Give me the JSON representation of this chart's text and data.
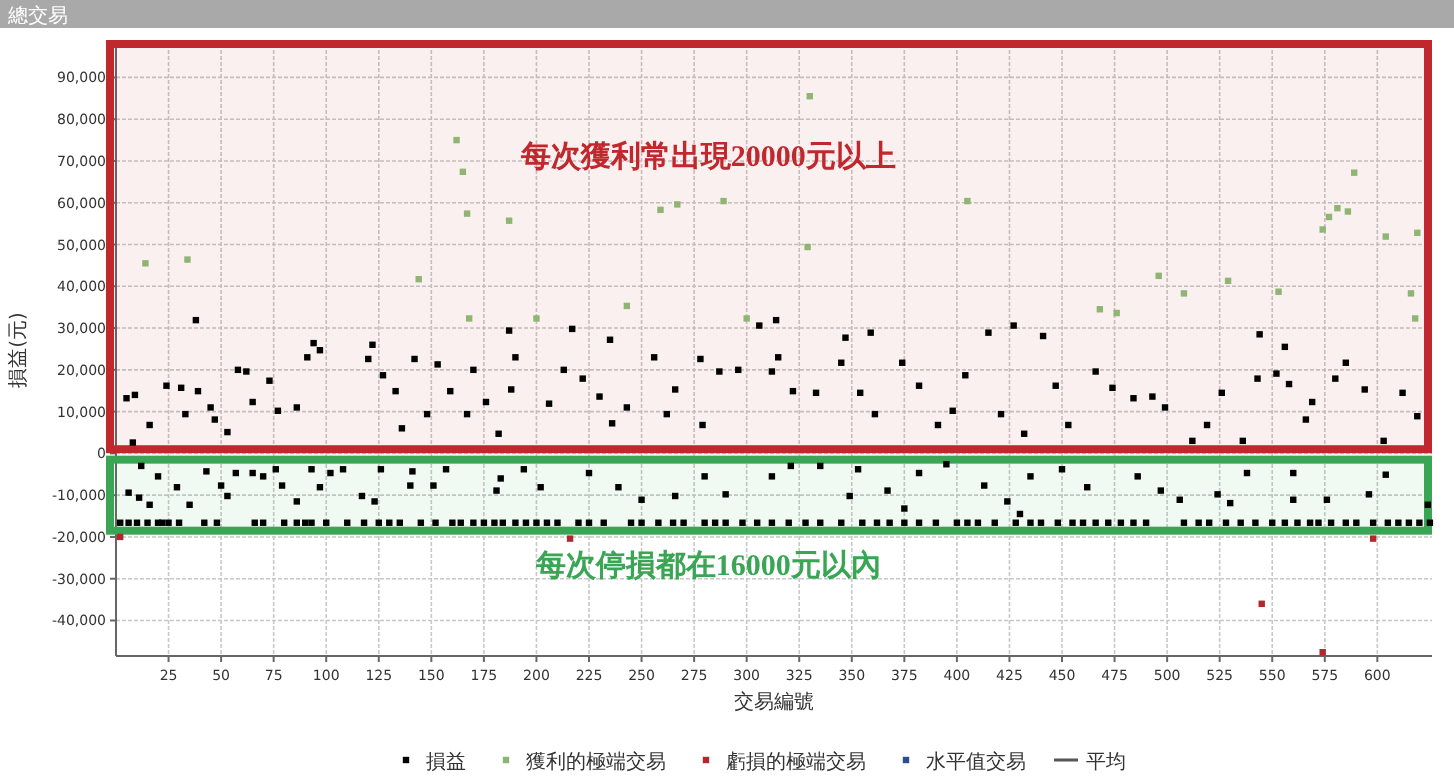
{
  "chart_data": {
    "type": "scatter",
    "title": "總交易",
    "xlabel": "交易編號",
    "ylabel": "損益(元)",
    "xlim": [
      0,
      626
    ],
    "ylim": [
      -48500,
      98000
    ],
    "xticks": [
      25,
      50,
      75,
      100,
      125,
      150,
      175,
      200,
      225,
      250,
      275,
      300,
      325,
      350,
      375,
      400,
      425,
      450,
      475,
      500,
      525,
      550,
      575,
      600
    ],
    "yticks": [
      {
        "value": -40000,
        "label": "-40,000"
      },
      {
        "value": -30000,
        "label": "-30,000"
      },
      {
        "value": -20000,
        "label": "-20,000"
      },
      {
        "value": -10000,
        "label": "-10,000"
      },
      0,
      {
        "value": 10000,
        "label": "10,000"
      },
      {
        "value": 20000,
        "label": "20,000"
      },
      {
        "value": 30000,
        "label": "30,000"
      },
      {
        "value": 40000,
        "label": "40,000"
      },
      {
        "value": 50000,
        "label": "50,000"
      },
      {
        "value": 60000,
        "label": "60,000"
      },
      {
        "value": 70000,
        "label": "70,000"
      },
      {
        "value": 80000,
        "label": "80,000"
      },
      {
        "value": 90000,
        "label": "90,000"
      }
    ],
    "grid": true,
    "legend": "bottom",
    "marker": "square",
    "bands": [
      {
        "axis": "y",
        "from": 1000,
        "to": 98000,
        "label": "每次獲利常出現20000元以上",
        "color": "#c0282d"
      },
      {
        "axis": "y",
        "from": -18500,
        "to": -1500,
        "label": "每次停損都在16000元以內",
        "color": "#3aa655"
      }
    ],
    "series": [
      {
        "name": "損益",
        "color": "#000000",
        "x": [
          5,
          9,
          8,
          16,
          24,
          31,
          33,
          39,
          45,
          47,
          53,
          58,
          62,
          65,
          73,
          77,
          86,
          91,
          97,
          120,
          127,
          133,
          136,
          142,
          148,
          153,
          159,
          167,
          170,
          176,
          182,
          190,
          38,
          94,
          122,
          187,
          12,
          6,
          11,
          16,
          20,
          29,
          35,
          43,
          50,
          53,
          57,
          65,
          70,
          76,
          79,
          86,
          93,
          97,
          102,
          108,
          117,
          123,
          126,
          141,
          140,
          151,
          157,
          181,
          183,
          2,
          6,
          10,
          15,
          20,
          22,
          25,
          30,
          42,
          48,
          66,
          70,
          80,
          86,
          90,
          93,
          100,
          110,
          118,
          125,
          130,
          135,
          145,
          152,
          160,
          164,
          170,
          175,
          180,
          184,
          190,
          188,
          206,
          213,
          222,
          230,
          236,
          243,
          256,
          262,
          266,
          278,
          279,
          287,
          296,
          312,
          315,
          322,
          333,
          345,
          354,
          361,
          374,
          382,
          391,
          398,
          404,
          421,
          432,
          447,
          453,
          466,
          474,
          484,
          493,
          499,
          512,
          519,
          526,
          536,
          543,
          552,
          558,
          566,
          569,
          580,
          585,
          594,
          603,
          612,
          619,
          217,
          235,
          306,
          314,
          347,
          359,
          415,
          427,
          441,
          544,
          556,
          194,
          202,
          225,
          239,
          250,
          266,
          280,
          290,
          312,
          321,
          335,
          349,
          353,
          367,
          375,
          382,
          395,
          413,
          424,
          430,
          435,
          450,
          462,
          486,
          497,
          506,
          524,
          530,
          538,
          560,
          560,
          576,
          596,
          604,
          624,
          195,
          200,
          205,
          210,
          220,
          225,
          232,
          245,
          250,
          258,
          265,
          270,
          280,
          285,
          290,
          298,
          305,
          312,
          320,
          328,
          335,
          345,
          355,
          362,
          368,
          375,
          382,
          390,
          400,
          405,
          410,
          418,
          428,
          435,
          440,
          448,
          455,
          460,
          466,
          472,
          478,
          484,
          490,
          508,
          515,
          520,
          528,
          535,
          542,
          550,
          556,
          562,
          568,
          572,
          578,
          585,
          590,
          598,
          605,
          610,
          615,
          620,
          625
        ],
        "values": [
          13200,
          14000,
          2600,
          6800,
          16200,
          15700,
          9400,
          14900,
          11000,
          8100,
          5100,
          20000,
          19600,
          12300,
          17400,
          10200,
          11000,
          23000,
          24700,
          22600,
          18700,
          14900,
          6000,
          22600,
          9400,
          21300,
          14900,
          9400,
          20000,
          12300,
          4700,
          23000,
          31900,
          26400,
          26000,
          29400,
          -3000,
          -9400,
          -10600,
          -12300,
          -5500,
          -8100,
          -12300,
          -4300,
          -7700,
          -10200,
          -4700,
          -4700,
          -5500,
          -3800,
          -7700,
          -11500,
          -3800,
          -8100,
          -4700,
          -3800,
          -10200,
          -11500,
          -3800,
          -4300,
          -7700,
          -7700,
          -3800,
          -8900,
          -6000,
          -16600,
          -16600,
          -16600,
          -16600,
          -16600,
          -16600,
          -16600,
          -16600,
          -16600,
          -16600,
          -16600,
          -16600,
          -16600,
          -16600,
          -16600,
          -16600,
          -16600,
          -16600,
          -16600,
          -16600,
          -16600,
          -16600,
          -16600,
          -16600,
          -16600,
          -16600,
          -16600,
          -16600,
          -16600,
          -16600,
          -16600,
          15300,
          11900,
          20000,
          17900,
          13600,
          7200,
          11000,
          23000,
          9400,
          15300,
          22600,
          6800,
          19600,
          20000,
          19600,
          23000,
          14900,
          14500,
          21700,
          14500,
          9400,
          21700,
          16200,
          6800,
          10200,
          18700,
          9400,
          4700,
          16200,
          6800,
          19600,
          15700,
          13200,
          13600,
          11000,
          3000,
          6800,
          14500,
          3000,
          17900,
          19100,
          16600,
          8100,
          12300,
          17900,
          21700,
          15300,
          3000,
          14500,
          8900,
          29800,
          27200,
          30600,
          31900,
          27700,
          28900,
          28900,
          30600,
          28100,
          28500,
          25500,
          -3800,
          -8100,
          -4700,
          -8100,
          -11100,
          -10200,
          -5500,
          -9800,
          -5500,
          -3000,
          -3000,
          -10200,
          -3800,
          -8900,
          -13200,
          -4700,
          -2600,
          -7700,
          -11500,
          -14500,
          -5500,
          -3800,
          -8100,
          -5500,
          -8900,
          -11100,
          -9800,
          -11900,
          -4700,
          -4700,
          -11100,
          -11100,
          -9800,
          -5100,
          -12300,
          -16600,
          -16600,
          -16600,
          -16600,
          -16600,
          -16600,
          -16600,
          -16600,
          -16600,
          -16600,
          -16600,
          -16600,
          -16600,
          -16600,
          -16600,
          -16600,
          -16600,
          -16600,
          -16600,
          -16600,
          -16600,
          -16600,
          -16600,
          -16600,
          -16600,
          -16600,
          -16600,
          -16600,
          -16600,
          -16600,
          -16600,
          -16600,
          -16600,
          -16600,
          -16600,
          -16600,
          -16600,
          -16600,
          -16600,
          -16600,
          -16600,
          -16600,
          -16600,
          -16600,
          -16600,
          -16600,
          -16600,
          -16600,
          -16600,
          -16600,
          -16600,
          -16600,
          -16600,
          -16600,
          -16600,
          -16600,
          -16600,
          -16600,
          -16600,
          -16600,
          -16600,
          -16600,
          -16600
        ]
      },
      {
        "name": "獲利的極端交易",
        "color": "#8fb573",
        "x": [
          14,
          34,
          144,
          162,
          165,
          167,
          168,
          187,
          200,
          243,
          259,
          267,
          289,
          300,
          329,
          330,
          405,
          468,
          476,
          496,
          508,
          529,
          553,
          574,
          577,
          581,
          586,
          589,
          604,
          616,
          618,
          619
        ],
        "values": [
          45500,
          46400,
          41700,
          75000,
          67400,
          57400,
          32300,
          55700,
          32300,
          35300,
          58300,
          59600,
          60400,
          32300,
          49400,
          85500,
          60400,
          34500,
          33600,
          42500,
          38300,
          41300,
          38700,
          53600,
          56600,
          58700,
          57900,
          67200,
          51900,
          38300,
          32300,
          52800
        ]
      },
      {
        "name": "虧損的極端交易",
        "color": "#b0282c",
        "x": [
          2,
          216,
          545,
          574,
          598
        ],
        "values": [
          -20000,
          -20400,
          -36000,
          -47600,
          -20400
        ]
      },
      {
        "name": "水平值交易",
        "color": "#2a4d8f"
      },
      {
        "name": "平均",
        "type": "line",
        "color": "#555555"
      }
    ]
  }
}
